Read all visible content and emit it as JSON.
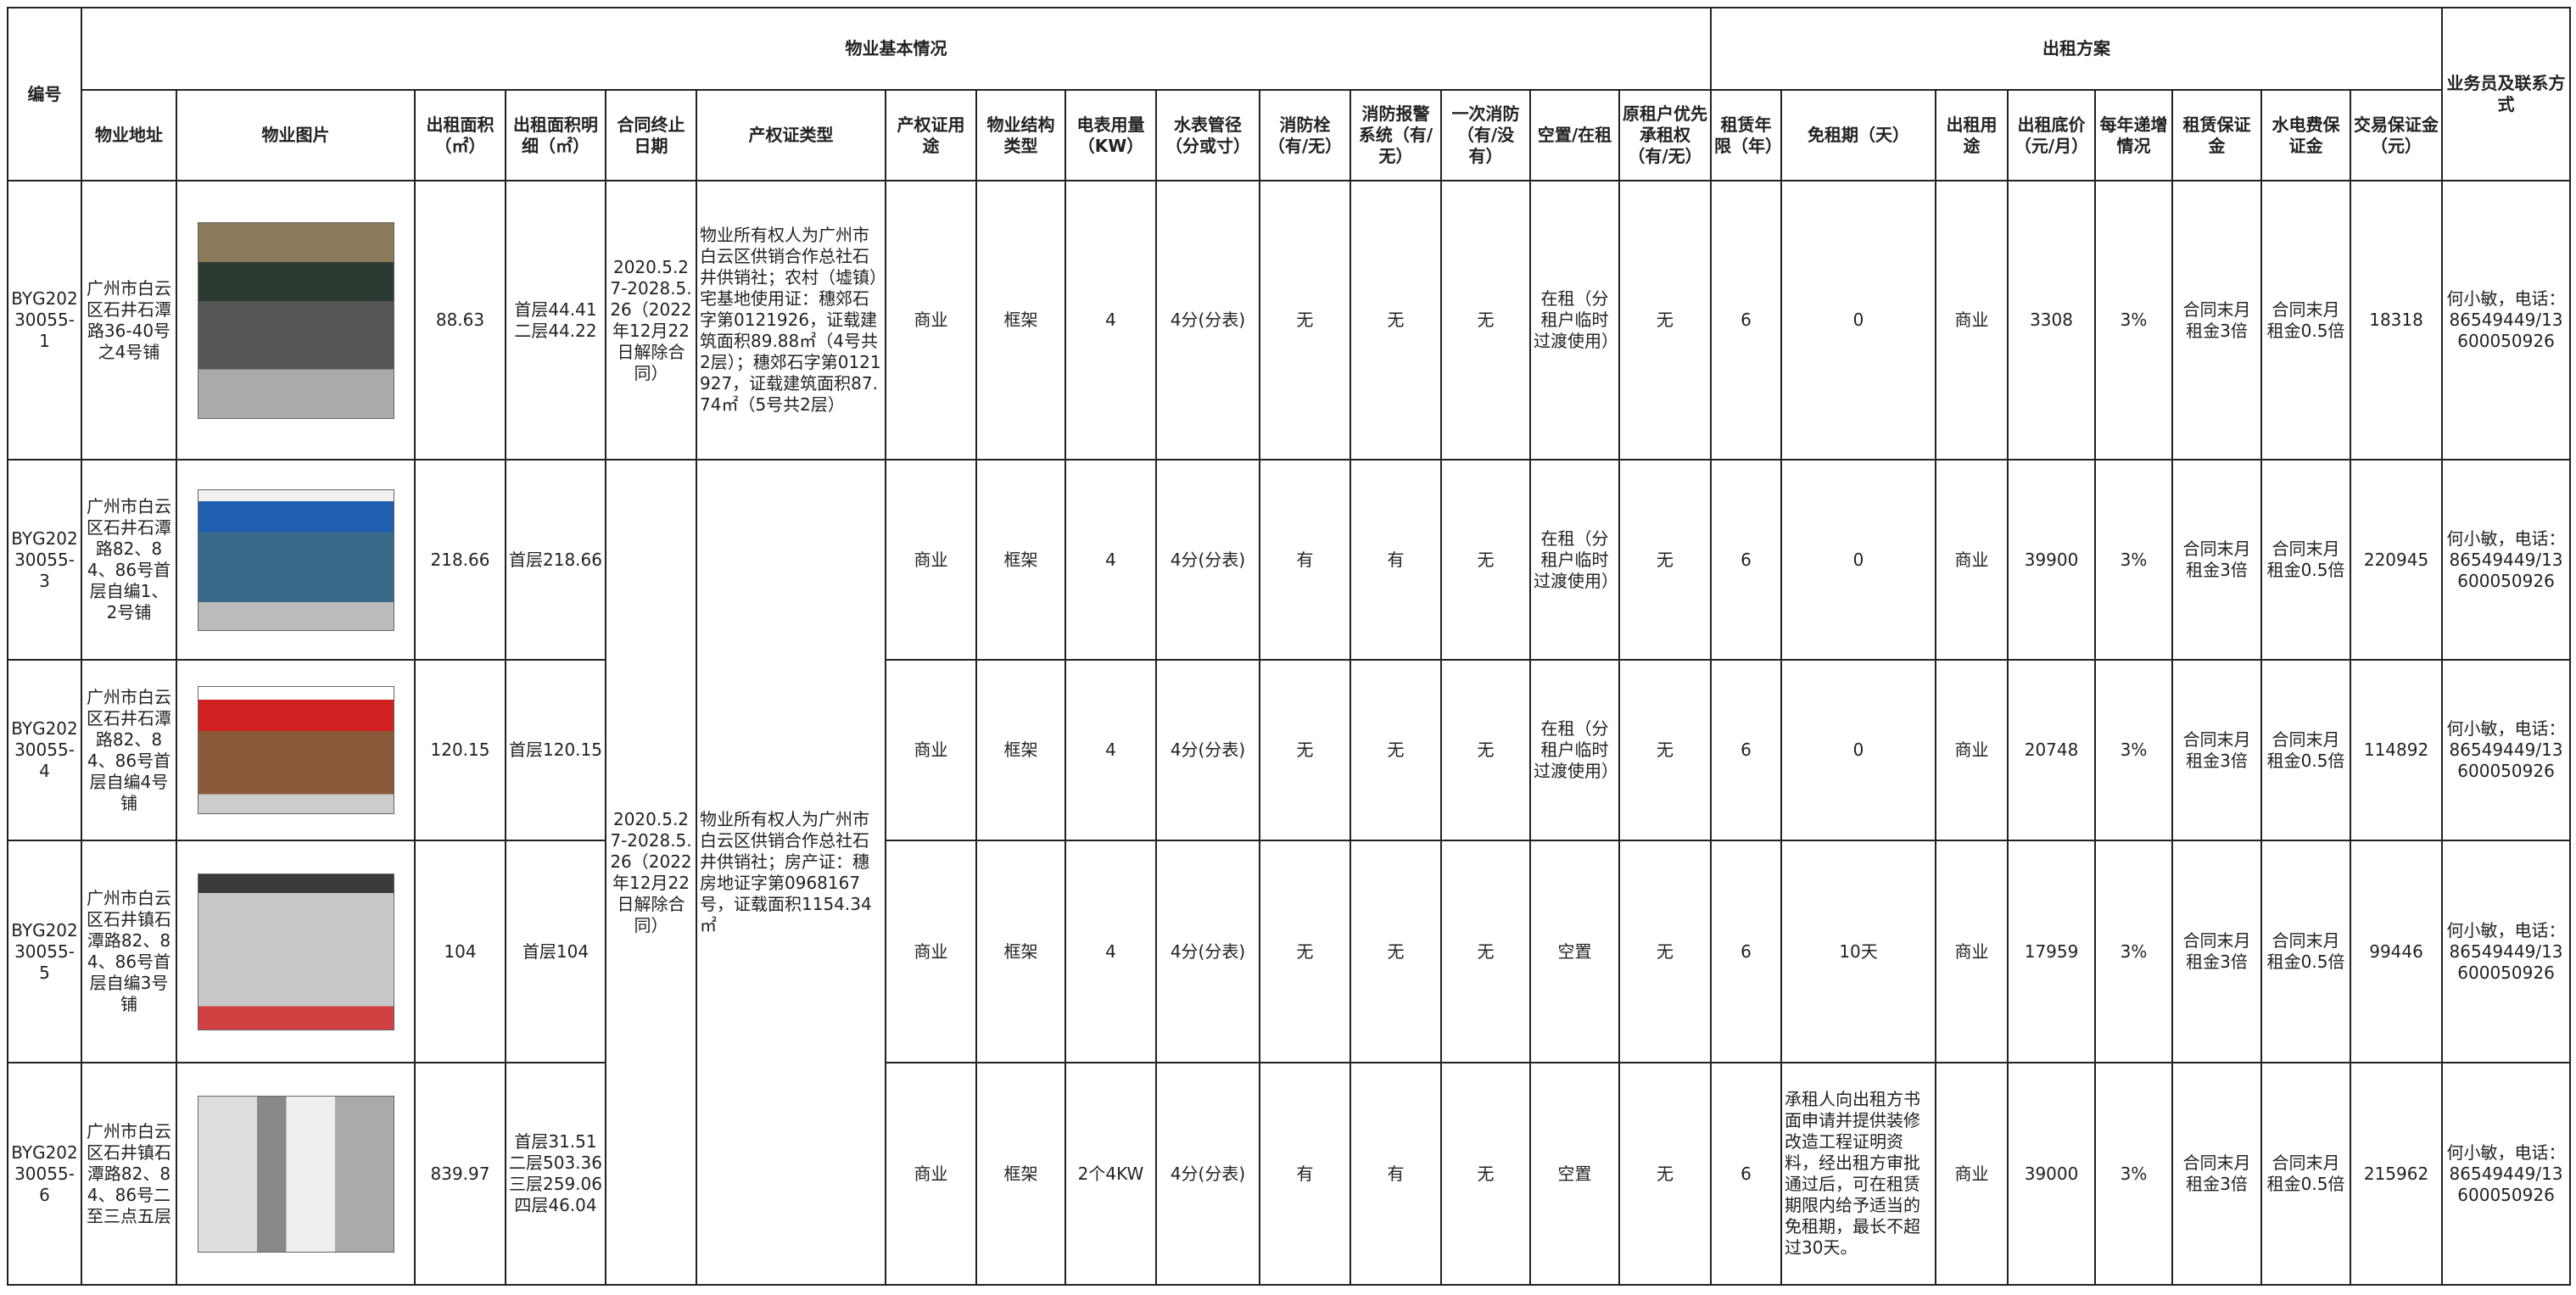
{
  "table": {
    "group_headers": [
      "编号",
      "物业基本情况",
      "出租方案",
      "业务员及联系方式"
    ],
    "columns": [
      "物业地址",
      "物业图片",
      "出租面积（㎡）",
      "出租面积明细（㎡）",
      "合同终止日期",
      "产权证类型",
      "产权证用途",
      "物业结构类型",
      "电表用量（KW）",
      "水表管径（分或寸）",
      "消防栓（有/无）",
      "消防报警系统（有/无）",
      "一次消防（有/没有）",
      "空置/在租",
      "原租户优先承租权（有/无）",
      "租赁年限（年）",
      "免租期（天）",
      "出租用途",
      "出租底价（元/月）",
      "每年递增情况",
      "租赁保证金",
      "水电费保证金",
      "交易保证金（元）"
    ],
    "shared_contract_end": "2020.5.27-2028.5.26（2022年12月22日解除合同）",
    "shared_cert_type": "物业所有权人为广州市白云区供销合作总社石井供销社；房产证：穗房地证字第0968167号，证载面积1154.34㎡",
    "rows": [
      {
        "id": "BYG20230055-1",
        "address": "广州市白云区石井石潭路36-40号之4号铺",
        "area": "88.63",
        "area_detail": "首层44.41二层44.22",
        "contract_end": "2020.5.27-2028.5.26（2022年12月22日解除合同）",
        "cert_type": "物业所有权人为广州市白云区供销合作总社石井供销社；农村（墟镇）宅基地使用证：穗郊石字第0121926，证载建筑面积89.88㎡（4号共2层）；穗郊石字第0121927，证载建筑面积87.74㎡（5号共2层）",
        "use": "商业",
        "structure": "框架",
        "meter": "4",
        "water": "4分(分表)",
        "hydrant": "无",
        "alarm": "无",
        "fire": "无",
        "status": "在租（分租户临时过渡使用）",
        "priority": "无",
        "years": "6",
        "free": "0",
        "rent_use": "商业",
        "price": "3308",
        "increase": "3%",
        "deposit": "合同末月租金3倍",
        "utility_deposit": "合同末月租金0.5倍",
        "trade_deposit": "18318",
        "contact": "何小敏，电话：86549449/13600050926"
      },
      {
        "id": "BYG20230055-3",
        "address": "广州市白云区石井石潭路82、84、86号首层自编1、2号铺",
        "area": "218.66",
        "area_detail": "首层218.66",
        "use": "商业",
        "structure": "框架",
        "meter": "4",
        "water": "4分(分表)",
        "hydrant": "有",
        "alarm": "有",
        "fire": "无",
        "status": "在租（分租户临时过渡使用）",
        "priority": "无",
        "years": "6",
        "free": "0",
        "rent_use": "商业",
        "price": "39900",
        "increase": "3%",
        "deposit": "合同末月租金3倍",
        "utility_deposit": "合同末月租金0.5倍",
        "trade_deposit": "220945",
        "contact": "何小敏，电话：86549449/13600050926"
      },
      {
        "id": "BYG20230055-4",
        "address": "广州市白云区石井石潭路82、84、86号首层自编4号铺",
        "area": "120.15",
        "area_detail": "首层120.15",
        "use": "商业",
        "structure": "框架",
        "meter": "4",
        "water": "4分(分表)",
        "hydrant": "无",
        "alarm": "无",
        "fire": "无",
        "status": "在租（分租户临时过渡使用）",
        "priority": "无",
        "years": "6",
        "free": "0",
        "rent_use": "商业",
        "price": "20748",
        "increase": "3%",
        "deposit": "合同末月租金3倍",
        "utility_deposit": "合同末月租金0.5倍",
        "trade_deposit": "114892",
        "contact": "何小敏，电话：86549449/13600050926"
      },
      {
        "id": "BYG20230055-5",
        "address": "广州市白云区石井镇石潭路82、84、86号首层自编3号铺",
        "area": "104",
        "area_detail": "首层104",
        "use": "商业",
        "structure": "框架",
        "meter": "4",
        "water": "4分(分表)",
        "hydrant": "无",
        "alarm": "无",
        "fire": "无",
        "status": "空置",
        "priority": "无",
        "years": "6",
        "free": "10天",
        "rent_use": "商业",
        "price": "17959",
        "increase": "3%",
        "deposit": "合同末月租金3倍",
        "utility_deposit": "合同末月租金0.5倍",
        "trade_deposit": "99446",
        "contact": "何小敏，电话：86549449/13600050926"
      },
      {
        "id": "BYG20230055-6",
        "address": "广州市白云区石井镇石潭路82、84、86号二至三点五层",
        "area": "839.97",
        "area_detail": "首层31.51二层503.36三层259.06四层46.04",
        "use": "商业",
        "structure": "框架",
        "meter": "2个4KW",
        "water": "4分(分表)",
        "hydrant": "有",
        "alarm": "有",
        "fire": "无",
        "status": "空置",
        "priority": "无",
        "years": "6",
        "free": "承租人向出租方书面申请并提供装修改造工程证明资料，经出租方审批通过后，可在租赁期限内给予适当的免租期，最长不超过30天。",
        "rent_use": "商业",
        "price": "39000",
        "increase": "3%",
        "deposit": "合同末月租金3倍",
        "utility_deposit": "合同末月租金0.5倍",
        "trade_deposit": "215962",
        "contact": "何小敏，电话：86549449/13600050926"
      }
    ]
  }
}
